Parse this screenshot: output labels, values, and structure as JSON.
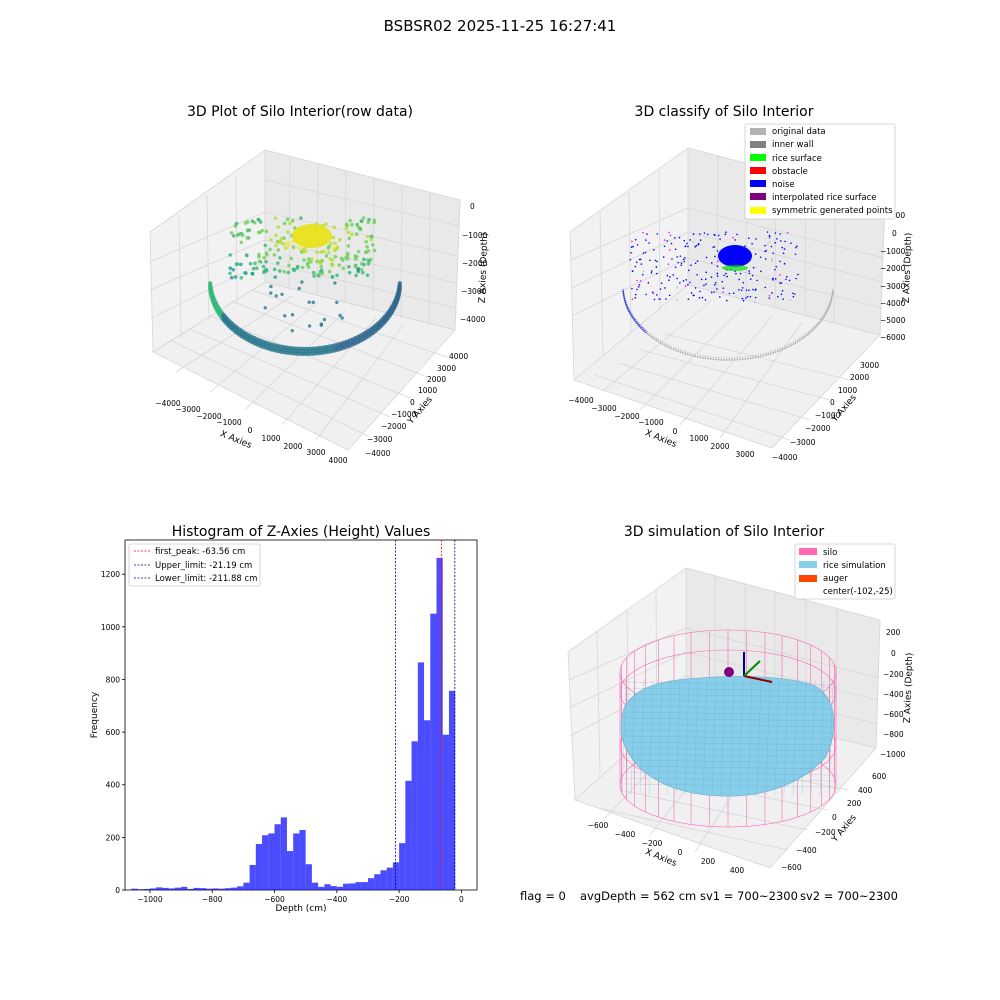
{
  "figure": {
    "suptitle": "BSBSR02 2025-11-25 16:27:41",
    "footer": {
      "flag": "flag = 0",
      "avg_depth": "avgDepth = 562 cm",
      "sv1": "sv1 = 700~2300",
      "sv2": "sv2 = 700~2300"
    }
  },
  "panels": {
    "raw": {
      "title": "3D Plot of Silo Interior(row data)",
      "xlabel": "X Axies",
      "ylabel": "Y Axies",
      "zlabel": "Z Axies (Depth)",
      "xticks": [
        "−4000",
        "−3000",
        "−2000",
        "−1000",
        "0",
        "1000",
        "2000",
        "3000",
        "4000"
      ],
      "yticks": [
        "−4000",
        "−3000",
        "−2000",
        "−1000",
        "0",
        "1000",
        "2000",
        "3000",
        "4000"
      ],
      "zticks": [
        "0",
        "−1000",
        "−2000",
        "−3000",
        "−4000"
      ]
    },
    "classify": {
      "title": "3D classify of Silo Interior",
      "xlabel": "X Axies",
      "ylabel": "Y Axies",
      "zlabel": "Z Axies (Depth)",
      "xticks": [
        "−4000",
        "−3000",
        "−2000",
        "−1000",
        "0",
        "1000",
        "2000",
        "3000"
      ],
      "yticks": [
        "−4000",
        "−3000",
        "−2000",
        "−1000",
        "0",
        "1000",
        "2000",
        "3000"
      ],
      "zticks": [
        "1000",
        "0",
        "−1000",
        "−2000",
        "−3000",
        "−4000",
        "−5000",
        "−6000"
      ],
      "legend": [
        {
          "label": "original data",
          "color": "#b3b3b3"
        },
        {
          "label": "inner wall",
          "color": "#808080"
        },
        {
          "label": "rice surface",
          "color": "#00ff00"
        },
        {
          "label": "obstacle",
          "color": "#ff0000"
        },
        {
          "label": "noise",
          "color": "#0000ff"
        },
        {
          "label": "interpolated rice surface",
          "color": "#800080"
        },
        {
          "label": "symmetric generated points",
          "color": "#ffff00"
        }
      ]
    },
    "simulation": {
      "title": "3D simulation of Silo Interior",
      "xlabel": "X Axies",
      "ylabel": "Y Axies",
      "zlabel": "Z Axies (Depth)",
      "xticks": [
        "−600",
        "−400",
        "−200",
        "0",
        "200",
        "400"
      ],
      "yticks": [
        "−600",
        "−400",
        "−200",
        "0",
        "200",
        "400",
        "600"
      ],
      "zticks": [
        "200",
        "0",
        "−200",
        "−400",
        "−600",
        "−800",
        "−1000"
      ],
      "legend": [
        {
          "label": "silo",
          "color": "#ff69b4"
        },
        {
          "label": "rice simulation",
          "color": "#87ceeb"
        },
        {
          "label": "auger",
          "color": "#ff4500"
        },
        {
          "label": "center(-102,-25)",
          "color": null
        }
      ]
    }
  },
  "chart_data": [
    {
      "type": "histogram",
      "title": "Histogram of Z-Axies (Height) Values",
      "xlabel": "Depth (cm)",
      "ylabel": "Frequency",
      "bar_color": "#0000ff",
      "xlim": [
        -1080,
        50
      ],
      "ylim": [
        0,
        1330
      ],
      "xticks": [
        -1000,
        -800,
        -600,
        -400,
        -200,
        0
      ],
      "yticks": [
        0,
        200,
        400,
        600,
        800,
        1000,
        1200
      ],
      "bin_width": 20,
      "bins": [
        [
          -1060,
          5
        ],
        [
          -1040,
          3
        ],
        [
          -1020,
          4
        ],
        [
          -1000,
          6
        ],
        [
          -980,
          10
        ],
        [
          -960,
          8
        ],
        [
          -940,
          6
        ],
        [
          -920,
          9
        ],
        [
          -900,
          12
        ],
        [
          -880,
          4
        ],
        [
          -860,
          8
        ],
        [
          -840,
          7
        ],
        [
          -820,
          5
        ],
        [
          -800,
          6
        ],
        [
          -780,
          5
        ],
        [
          -760,
          7
        ],
        [
          -740,
          9
        ],
        [
          -720,
          14
        ],
        [
          -700,
          28
        ],
        [
          -680,
          95
        ],
        [
          -660,
          175
        ],
        [
          -640,
          208
        ],
        [
          -620,
          215
        ],
        [
          -600,
          250
        ],
        [
          -580,
          276
        ],
        [
          -560,
          148
        ],
        [
          -540,
          215
        ],
        [
          -520,
          228
        ],
        [
          -500,
          98
        ],
        [
          -480,
          28
        ],
        [
          -460,
          12
        ],
        [
          -440,
          22
        ],
        [
          -420,
          15
        ],
        [
          -400,
          12
        ],
        [
          -380,
          24
        ],
        [
          -360,
          25
        ],
        [
          -340,
          30
        ],
        [
          -320,
          30
        ],
        [
          -300,
          45
        ],
        [
          -280,
          60
        ],
        [
          -260,
          75
        ],
        [
          -240,
          85
        ],
        [
          -220,
          105
        ],
        [
          -200,
          178
        ],
        [
          -180,
          415
        ],
        [
          -160,
          565
        ],
        [
          -140,
          865
        ],
        [
          -120,
          645
        ],
        [
          -100,
          1050
        ],
        [
          -80,
          1262
        ],
        [
          -60,
          590
        ],
        [
          -40,
          757
        ]
      ],
      "vlines": [
        {
          "label": "first_peak: -63.56 cm",
          "x": -63.56,
          "color": "#ff0000"
        },
        {
          "label": "Upper_limit: -21.19 cm",
          "x": -21.19,
          "color": "#00008b"
        },
        {
          "label": "Lower_limit: -211.88 cm",
          "x": -211.88,
          "color": "#00008b"
        }
      ],
      "legend": "top-left"
    }
  ]
}
